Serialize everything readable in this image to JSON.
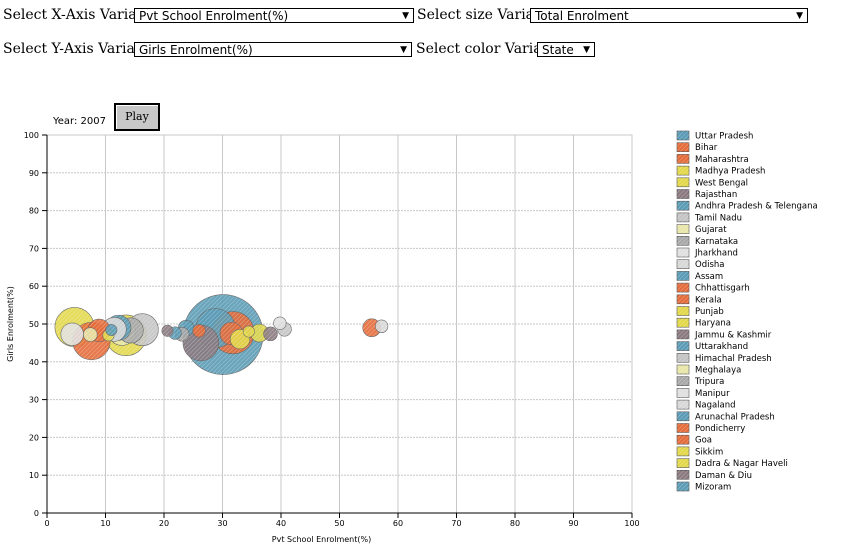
{
  "controls": {
    "x_label": "Select X-Axis Variable",
    "x_value": "Pvt School Enrolment(%)",
    "y_label": "Select Y-Axis Variable",
    "y_value": "Girls Enrolment(%)",
    "size_label": "Select size Variable",
    "size_value": "Total Enrolment",
    "color_label": "Select color Variable",
    "color_value": "State"
  },
  "animation": {
    "year_text": "Year: 2007",
    "play_label": "Play"
  },
  "chart_data": {
    "type": "scatter",
    "xlabel": "Pvt School Enrolment(%)",
    "ylabel": "Girls Enrolment(%)",
    "xlim": [
      0,
      100
    ],
    "ylim": [
      0,
      100
    ],
    "x_ticks": [
      0,
      10,
      20,
      30,
      40,
      50,
      60,
      70,
      80,
      90,
      100
    ],
    "y_ticks": [
      0,
      10,
      20,
      30,
      40,
      50,
      60,
      70,
      80,
      90,
      100
    ],
    "grid": true,
    "legend_position": "right",
    "size_variable": "Total Enrolment",
    "points": [
      {
        "name": "Uttar Pradesh",
        "x": 30.1,
        "y": 47.2,
        "size": 100,
        "color": "#5b9bb5"
      },
      {
        "name": "Bihar",
        "x": 7.6,
        "y": 45.5,
        "size": 22,
        "color": "#e46c3a"
      },
      {
        "name": "Maharashtra",
        "x": 31.8,
        "y": 47.7,
        "size": 28,
        "color": "#e46c3a"
      },
      {
        "name": "Madhya Pradesh",
        "x": 13.5,
        "y": 47.0,
        "size": 26,
        "color": "#e2d84a"
      },
      {
        "name": "West Bengal",
        "x": 4.7,
        "y": 49.2,
        "size": 24,
        "color": "#e2d84a"
      },
      {
        "name": "Rajasthan",
        "x": 26.3,
        "y": 45.0,
        "size": 20,
        "color": "#8a7a80"
      },
      {
        "name": "Andhra Pradesh & Telengana",
        "x": 28.8,
        "y": 48.9,
        "size": 24,
        "color": "#5b9bb5"
      },
      {
        "name": "Tamil Nadu",
        "x": 16.3,
        "y": 48.5,
        "size": 16,
        "color": "#c4c4c4"
      },
      {
        "name": "Gujarat",
        "x": 12.8,
        "y": 48.0,
        "size": 12,
        "color": "#e8e6a8"
      },
      {
        "name": "Karnataka",
        "x": 14.3,
        "y": 48.3,
        "size": 10,
        "color": "#a8a8a8"
      },
      {
        "name": "Jharkhand",
        "x": 4.3,
        "y": 47.3,
        "size": 8,
        "color": "#e0e0e0"
      },
      {
        "name": "Odisha",
        "x": 11.5,
        "y": 48.6,
        "size": 9,
        "color": "#d8d8d8"
      },
      {
        "name": "Assam",
        "x": 12.2,
        "y": 49.0,
        "size": 10,
        "color": "#5b9bb5"
      },
      {
        "name": "Chhattisgarh",
        "x": 8.9,
        "y": 48.3,
        "size": 8,
        "color": "#e46c3a"
      },
      {
        "name": "Kerala",
        "x": 31.5,
        "y": 47.5,
        "size": 8,
        "color": "#e46c3a"
      },
      {
        "name": "Punjab",
        "x": 36.3,
        "y": 47.6,
        "size": 5,
        "color": "#e2d84a"
      },
      {
        "name": "Haryana",
        "x": 33.0,
        "y": 46.0,
        "size": 6,
        "color": "#e2d84a"
      },
      {
        "name": "Jammu & Kashmir",
        "x": 38.2,
        "y": 47.4,
        "size": 3,
        "color": "#8a7a80"
      },
      {
        "name": "Uttarakhand",
        "x": 23.8,
        "y": 48.9,
        "size": 4,
        "color": "#5b9bb5"
      },
      {
        "name": "Himachal Pradesh",
        "x": 40.6,
        "y": 48.6,
        "size": 3,
        "color": "#c4c4c4"
      },
      {
        "name": "Meghalaya",
        "x": 7.4,
        "y": 47.2,
        "size": 3,
        "color": "#e8e6a8"
      },
      {
        "name": "Tripura",
        "x": 23.1,
        "y": 47.3,
        "size": 3,
        "color": "#a8a8a8"
      },
      {
        "name": "Manipur",
        "x": 39.8,
        "y": 50.2,
        "size": 2.5,
        "color": "#e0e0e0"
      },
      {
        "name": "Nagaland",
        "x": 57.2,
        "y": 49.4,
        "size": 2.5,
        "color": "#d8d8d8"
      },
      {
        "name": "Arunachal Pradesh",
        "x": 21.9,
        "y": 47.6,
        "size": 2.5,
        "color": "#5b9bb5"
      },
      {
        "name": "Pondicherry",
        "x": 55.5,
        "y": 49.0,
        "size": 5,
        "color": "#e46c3a"
      },
      {
        "name": "Goa",
        "x": 26.0,
        "y": 48.2,
        "size": 2.5,
        "color": "#e46c3a"
      },
      {
        "name": "Sikkim",
        "x": 10.5,
        "y": 47.0,
        "size": 2,
        "color": "#e2d84a"
      },
      {
        "name": "Dadra & Nagar Haveli",
        "x": 34.5,
        "y": 48.0,
        "size": 2,
        "color": "#e2d84a"
      },
      {
        "name": "Daman & Diu",
        "x": 20.6,
        "y": 48.2,
        "size": 2,
        "color": "#8a7a80"
      },
      {
        "name": "Mizoram",
        "x": 11.0,
        "y": 48.4,
        "size": 2,
        "color": "#5b9bb5"
      }
    ],
    "legend": [
      {
        "label": "Uttar Pradesh",
        "color": "#5b9bb5"
      },
      {
        "label": "Bihar",
        "color": "#e46c3a"
      },
      {
        "label": "Maharashtra",
        "color": "#e46c3a"
      },
      {
        "label": "Madhya Pradesh",
        "color": "#e2d84a"
      },
      {
        "label": "West Bengal",
        "color": "#e2d84a"
      },
      {
        "label": "Rajasthan",
        "color": "#8a7a80"
      },
      {
        "label": "Andhra Pradesh & Telengana",
        "color": "#5b9bb5"
      },
      {
        "label": "Tamil Nadu",
        "color": "#c4c4c4"
      },
      {
        "label": "Gujarat",
        "color": "#e8e6a8"
      },
      {
        "label": "Karnataka",
        "color": "#a8a8a8"
      },
      {
        "label": "Jharkhand",
        "color": "#e0e0e0"
      },
      {
        "label": "Odisha",
        "color": "#d8d8d8"
      },
      {
        "label": "Assam",
        "color": "#5b9bb5"
      },
      {
        "label": "Chhattisgarh",
        "color": "#e46c3a"
      },
      {
        "label": "Kerala",
        "color": "#e46c3a"
      },
      {
        "label": "Punjab",
        "color": "#e2d84a"
      },
      {
        "label": "Haryana",
        "color": "#e2d84a"
      },
      {
        "label": "Jammu & Kashmir",
        "color": "#8a7a80"
      },
      {
        "label": "Uttarakhand",
        "color": "#5b9bb5"
      },
      {
        "label": "Himachal Pradesh",
        "color": "#c4c4c4"
      },
      {
        "label": "Meghalaya",
        "color": "#e8e6a8"
      },
      {
        "label": "Tripura",
        "color": "#a8a8a8"
      },
      {
        "label": "Manipur",
        "color": "#e0e0e0"
      },
      {
        "label": "Nagaland",
        "color": "#d8d8d8"
      },
      {
        "label": "Arunachal Pradesh",
        "color": "#5b9bb5"
      },
      {
        "label": "Pondicherry",
        "color": "#e46c3a"
      },
      {
        "label": "Goa",
        "color": "#e46c3a"
      },
      {
        "label": "Sikkim",
        "color": "#e2d84a"
      },
      {
        "label": "Dadra & Nagar Haveli",
        "color": "#e2d84a"
      },
      {
        "label": "Daman & Diu",
        "color": "#8a7a80"
      },
      {
        "label": "Mizoram",
        "color": "#5b9bb5"
      }
    ]
  }
}
